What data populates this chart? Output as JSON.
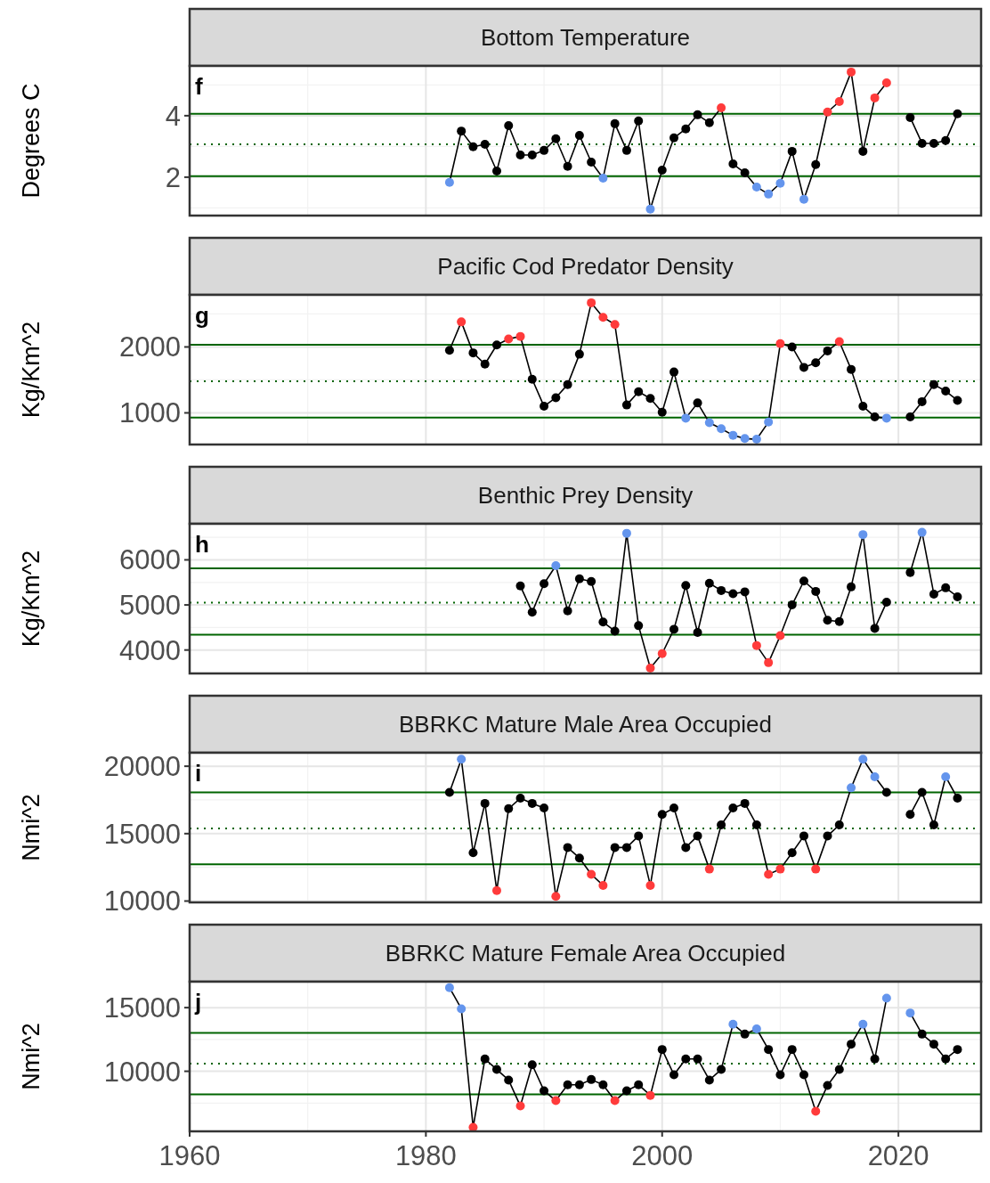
{
  "chart_data": [
    {
      "type": "line",
      "title": "Bottom Temperature",
      "ylabel": "Degrees C",
      "xlim": [
        1960,
        2027
      ],
      "xticks": [
        1960,
        1980,
        2000,
        2020
      ],
      "ylim": [
        0.75,
        5.62
      ],
      "yticks": [
        2,
        4
      ],
      "grid": true,
      "tick_labels": "y",
      "marker": "circle",
      "line_style": "solid",
      "annotations": [
        "f"
      ],
      "ref_lines": [
        {
          "axis": "y",
          "value": 4.06,
          "color": "#006400",
          "line_style": "solid"
        },
        {
          "axis": "y",
          "value": 3.07,
          "color": "#006400",
          "line_style": "dotted"
        },
        {
          "axis": "y",
          "value": 2.03,
          "color": "#006400",
          "line_style": "solid"
        }
      ],
      "series": [
        {
          "color": "#000000",
          "x": [
            1982,
            1983,
            1984,
            1985,
            1986,
            1987,
            1988,
            1989,
            1990,
            1991,
            1992,
            1993,
            1994,
            1995,
            1996,
            1997,
            1998,
            1999,
            2000,
            2001,
            2002,
            2003,
            2004,
            2005,
            2006,
            2007,
            2008,
            2009,
            2010,
            2011,
            2012,
            2013,
            2014,
            2015,
            2016,
            2017,
            2018,
            2019,
            2020,
            2021,
            2022,
            2023,
            2024,
            2025
          ],
          "values": [
            1.83,
            3.5,
            2.99,
            3.07,
            2.2,
            3.68,
            2.72,
            2.72,
            2.87,
            3.25,
            2.35,
            3.36,
            2.49,
            1.97,
            3.74,
            2.87,
            3.83,
            0.96,
            2.23,
            3.28,
            3.57,
            4.03,
            3.77,
            4.26,
            2.43,
            2.14,
            1.68,
            1.45,
            1.8,
            2.84,
            1.28,
            2.41,
            4.12,
            4.46,
            5.42,
            2.84,
            4.58,
            5.07,
            null,
            3.94,
            3.1,
            3.1,
            3.19,
            4.06
          ],
          "colors": [
            "#6495ed",
            "#000000",
            "#000000",
            "#000000",
            "#000000",
            "#000000",
            "#000000",
            "#000000",
            "#000000",
            "#000000",
            "#000000",
            "#000000",
            "#000000",
            "#6495ed",
            "#000000",
            "#000000",
            "#000000",
            "#6495ed",
            "#000000",
            "#000000",
            "#000000",
            "#000000",
            "#000000",
            "#ff3b3b",
            "#000000",
            "#000000",
            "#6495ed",
            "#6495ed",
            "#6495ed",
            "#000000",
            "#6495ed",
            "#000000",
            "#ff3b3b",
            "#ff3b3b",
            "#ff3b3b",
            "#000000",
            "#ff3b3b",
            "#ff3b3b",
            null,
            "#000000",
            "#000000",
            "#000000",
            "#000000",
            "#000000"
          ]
        }
      ]
    },
    {
      "type": "line",
      "title": "Pacific Cod Predator Density",
      "ylabel": "Kg/Km^2",
      "xlim": [
        1960,
        2027
      ],
      "xticks": [
        1960,
        1980,
        2000,
        2020
      ],
      "ylim": [
        520,
        2790
      ],
      "yticks": [
        1000,
        2000
      ],
      "grid": true,
      "tick_labels": "y",
      "marker": "circle",
      "line_style": "solid",
      "annotations": [
        "g"
      ],
      "ref_lines": [
        {
          "axis": "y",
          "value": 2035,
          "color": "#006400",
          "line_style": "solid"
        },
        {
          "axis": "y",
          "value": 1478,
          "color": "#006400",
          "line_style": "dotted"
        },
        {
          "axis": "y",
          "value": 930,
          "color": "#006400",
          "line_style": "solid"
        }
      ],
      "series": [
        {
          "color": "#000000",
          "x": [
            1982,
            1983,
            1984,
            1985,
            1986,
            1987,
            1988,
            1989,
            1990,
            1991,
            1992,
            1993,
            1994,
            1995,
            1996,
            1997,
            1998,
            1999,
            2000,
            2001,
            2002,
            2003,
            2004,
            2005,
            2006,
            2007,
            2008,
            2009,
            2010,
            2011,
            2012,
            2013,
            2014,
            2015,
            2016,
            2017,
            2018,
            2019,
            2020,
            2021,
            2022,
            2023,
            2024,
            2025
          ],
          "values": [
            1950,
            2380,
            1910,
            1740,
            2030,
            2120,
            2160,
            1510,
            1100,
            1230,
            1430,
            1890,
            2670,
            2450,
            2340,
            1120,
            1320,
            1220,
            1010,
            1620,
            920,
            1150,
            850,
            760,
            660,
            610,
            600,
            860,
            2050,
            2000,
            1690,
            1760,
            1940,
            2080,
            1660,
            1100,
            940,
            920,
            null,
            940,
            1170,
            1430,
            1330,
            1190
          ],
          "colors": [
            "#000000",
            "#ff3b3b",
            "#000000",
            "#000000",
            "#000000",
            "#ff3b3b",
            "#ff3b3b",
            "#000000",
            "#000000",
            "#000000",
            "#000000",
            "#000000",
            "#ff3b3b",
            "#ff3b3b",
            "#ff3b3b",
            "#000000",
            "#000000",
            "#000000",
            "#000000",
            "#000000",
            "#6495ed",
            "#000000",
            "#6495ed",
            "#6495ed",
            "#6495ed",
            "#6495ed",
            "#6495ed",
            "#6495ed",
            "#ff3b3b",
            "#000000",
            "#000000",
            "#000000",
            "#000000",
            "#ff3b3b",
            "#000000",
            "#000000",
            "#000000",
            "#6495ed",
            null,
            "#000000",
            "#000000",
            "#000000",
            "#000000",
            "#000000"
          ]
        }
      ]
    },
    {
      "type": "line",
      "title": "Benthic Prey Density",
      "ylabel": "Kg/Km^2",
      "xlim": [
        1960,
        2027
      ],
      "xticks": [
        1960,
        1980,
        2000,
        2020
      ],
      "ylim": [
        3480,
        6800
      ],
      "yticks": [
        4000,
        5000,
        6000
      ],
      "grid": true,
      "tick_labels": "y",
      "marker": "circle",
      "line_style": "solid",
      "annotations": [
        "h"
      ],
      "ref_lines": [
        {
          "axis": "y",
          "value": 5810,
          "color": "#006400",
          "line_style": "solid"
        },
        {
          "axis": "y",
          "value": 5050,
          "color": "#006400",
          "line_style": "dotted"
        },
        {
          "axis": "y",
          "value": 4340,
          "color": "#006400",
          "line_style": "solid"
        }
      ],
      "series": [
        {
          "color": "#000000",
          "x": [
            1988,
            1989,
            1990,
            1991,
            1992,
            1993,
            1994,
            1995,
            1996,
            1997,
            1998,
            1999,
            2000,
            2001,
            2002,
            2003,
            2004,
            2005,
            2006,
            2007,
            2008,
            2009,
            2010,
            2011,
            2012,
            2013,
            2014,
            2015,
            2016,
            2017,
            2018,
            2019,
            2020,
            2021,
            2022,
            2023,
            2024,
            2025
          ],
          "values": [
            5420,
            4840,
            5470,
            5870,
            4870,
            5580,
            5520,
            4620,
            4420,
            6590,
            4540,
            3600,
            3920,
            4460,
            5430,
            4390,
            5480,
            5320,
            5250,
            5290,
            4100,
            3720,
            4320,
            5000,
            5530,
            5300,
            4660,
            4630,
            5400,
            6560,
            4480,
            5060,
            null,
            5720,
            6610,
            5240,
            5380,
            5180
          ],
          "colors": [
            "#000000",
            "#000000",
            "#000000",
            "#6495ed",
            "#000000",
            "#000000",
            "#000000",
            "#000000",
            "#000000",
            "#6495ed",
            "#000000",
            "#ff3b3b",
            "#ff3b3b",
            "#000000",
            "#000000",
            "#000000",
            "#000000",
            "#000000",
            "#000000",
            "#000000",
            "#ff3b3b",
            "#ff3b3b",
            "#ff3b3b",
            "#000000",
            "#000000",
            "#000000",
            "#000000",
            "#000000",
            "#000000",
            "#6495ed",
            "#000000",
            "#000000",
            null,
            "#000000",
            "#6495ed",
            "#000000",
            "#000000",
            "#000000"
          ]
        }
      ]
    },
    {
      "type": "line",
      "title": "BBRKC Mature Male Area Occupied",
      "ylabel": "Nmi^2",
      "xlim": [
        1960,
        2027
      ],
      "xticks": [
        1960,
        1980,
        2000,
        2020
      ],
      "ylim": [
        9900,
        21000
      ],
      "yticks": [
        10000,
        15000,
        20000
      ],
      "grid": true,
      "tick_labels": "y",
      "marker": "circle",
      "line_style": "solid",
      "annotations": [
        "i"
      ],
      "ref_lines": [
        {
          "axis": "y",
          "value": 18060,
          "color": "#006400",
          "line_style": "solid"
        },
        {
          "axis": "y",
          "value": 15390,
          "color": "#006400",
          "line_style": "dotted"
        },
        {
          "axis": "y",
          "value": 12720,
          "color": "#006400",
          "line_style": "solid"
        }
      ],
      "series": [
        {
          "color": "#000000",
          "x": [
            1982,
            1983,
            1984,
            1985,
            1986,
            1987,
            1988,
            1989,
            1990,
            1991,
            1992,
            1993,
            1994,
            1995,
            1996,
            1997,
            1998,
            1999,
            2000,
            2001,
            2002,
            2003,
            2004,
            2005,
            2006,
            2007,
            2008,
            2009,
            2010,
            2011,
            2012,
            2013,
            2014,
            2015,
            2016,
            2017,
            2018,
            2019,
            2020,
            2021,
            2022,
            2023,
            2024,
            2025
          ],
          "values": [
            18060,
            20520,
            13580,
            17240,
            10780,
            16850,
            17630,
            17240,
            16900,
            10350,
            13970,
            13190,
            11980,
            11160,
            13970,
            13970,
            14830,
            11160,
            16420,
            16900,
            13970,
            14830,
            12370,
            15650,
            16900,
            17240,
            15650,
            11980,
            12370,
            13580,
            14830,
            12370,
            14830,
            15650,
            18400,
            20520,
            19220,
            18060,
            null,
            16420,
            18060,
            15650,
            19220,
            17630
          ],
          "colors": [
            "#000000",
            "#6495ed",
            "#000000",
            "#000000",
            "#ff3b3b",
            "#000000",
            "#000000",
            "#000000",
            "#000000",
            "#ff3b3b",
            "#000000",
            "#000000",
            "#ff3b3b",
            "#ff3b3b",
            "#000000",
            "#000000",
            "#000000",
            "#ff3b3b",
            "#000000",
            "#000000",
            "#000000",
            "#000000",
            "#ff3b3b",
            "#000000",
            "#000000",
            "#000000",
            "#000000",
            "#ff3b3b",
            "#ff3b3b",
            "#000000",
            "#000000",
            "#ff3b3b",
            "#000000",
            "#000000",
            "#6495ed",
            "#6495ed",
            "#6495ed",
            "#000000",
            null,
            "#000000",
            "#000000",
            "#000000",
            "#6495ed",
            "#000000"
          ]
        }
      ]
    },
    {
      "type": "line",
      "title": "BBRKC Mature Female Area Occupied",
      "ylabel": "Nmi^2",
      "xlim": [
        1960,
        2027
      ],
      "xticks": [
        1960,
        1980,
        2000,
        2020
      ],
      "ylim": [
        5280,
        17040
      ],
      "yticks": [
        10000,
        15000
      ],
      "grid": true,
      "marker": "circle",
      "line_style": "solid",
      "annotations": [
        "j"
      ],
      "ref_lines": [
        {
          "axis": "y",
          "value": 13010,
          "color": "#006400",
          "line_style": "solid"
        },
        {
          "axis": "y",
          "value": 10600,
          "color": "#006400",
          "line_style": "dotted"
        },
        {
          "axis": "y",
          "value": 8190,
          "color": "#006400",
          "line_style": "solid"
        }
      ],
      "series": [
        {
          "color": "#000000",
          "x": [
            1982,
            1983,
            1984,
            1985,
            1986,
            1987,
            1988,
            1989,
            1990,
            1991,
            1992,
            1993,
            1994,
            1995,
            1996,
            1997,
            1998,
            1999,
            2000,
            2001,
            2002,
            2003,
            2004,
            2005,
            2006,
            2007,
            2008,
            2009,
            2010,
            2011,
            2012,
            2013,
            2014,
            2015,
            2016,
            2017,
            2018,
            2019,
            2020,
            2021,
            2022,
            2023,
            2024,
            2025
          ],
          "values": [
            16570,
            14910,
            5600,
            10970,
            10140,
            9310,
            7270,
            10510,
            8470,
            7690,
            8940,
            8940,
            9350,
            8940,
            7690,
            8470,
            8940,
            8100,
            11710,
            9720,
            10970,
            10970,
            9310,
            10140,
            13700,
            12920,
            13330,
            11710,
            9720,
            11710,
            9720,
            6850,
            8890,
            10140,
            12130,
            13700,
            10970,
            15740,
            null,
            14580,
            12920,
            12130,
            10970,
            11710
          ],
          "colors": [
            "#6495ed",
            "#6495ed",
            "#ff3b3b",
            "#000000",
            "#000000",
            "#000000",
            "#ff3b3b",
            "#000000",
            "#000000",
            "#ff3b3b",
            "#000000",
            "#000000",
            "#000000",
            "#000000",
            "#ff3b3b",
            "#000000",
            "#000000",
            "#ff3b3b",
            "#000000",
            "#000000",
            "#000000",
            "#000000",
            "#000000",
            "#000000",
            "#6495ed",
            "#000000",
            "#6495ed",
            "#000000",
            "#000000",
            "#000000",
            "#000000",
            "#ff3b3b",
            "#000000",
            "#000000",
            "#000000",
            "#6495ed",
            "#000000",
            "#6495ed",
            null,
            "#6495ed",
            "#000000",
            "#000000",
            "#000000",
            "#000000"
          ]
        }
      ]
    }
  ]
}
